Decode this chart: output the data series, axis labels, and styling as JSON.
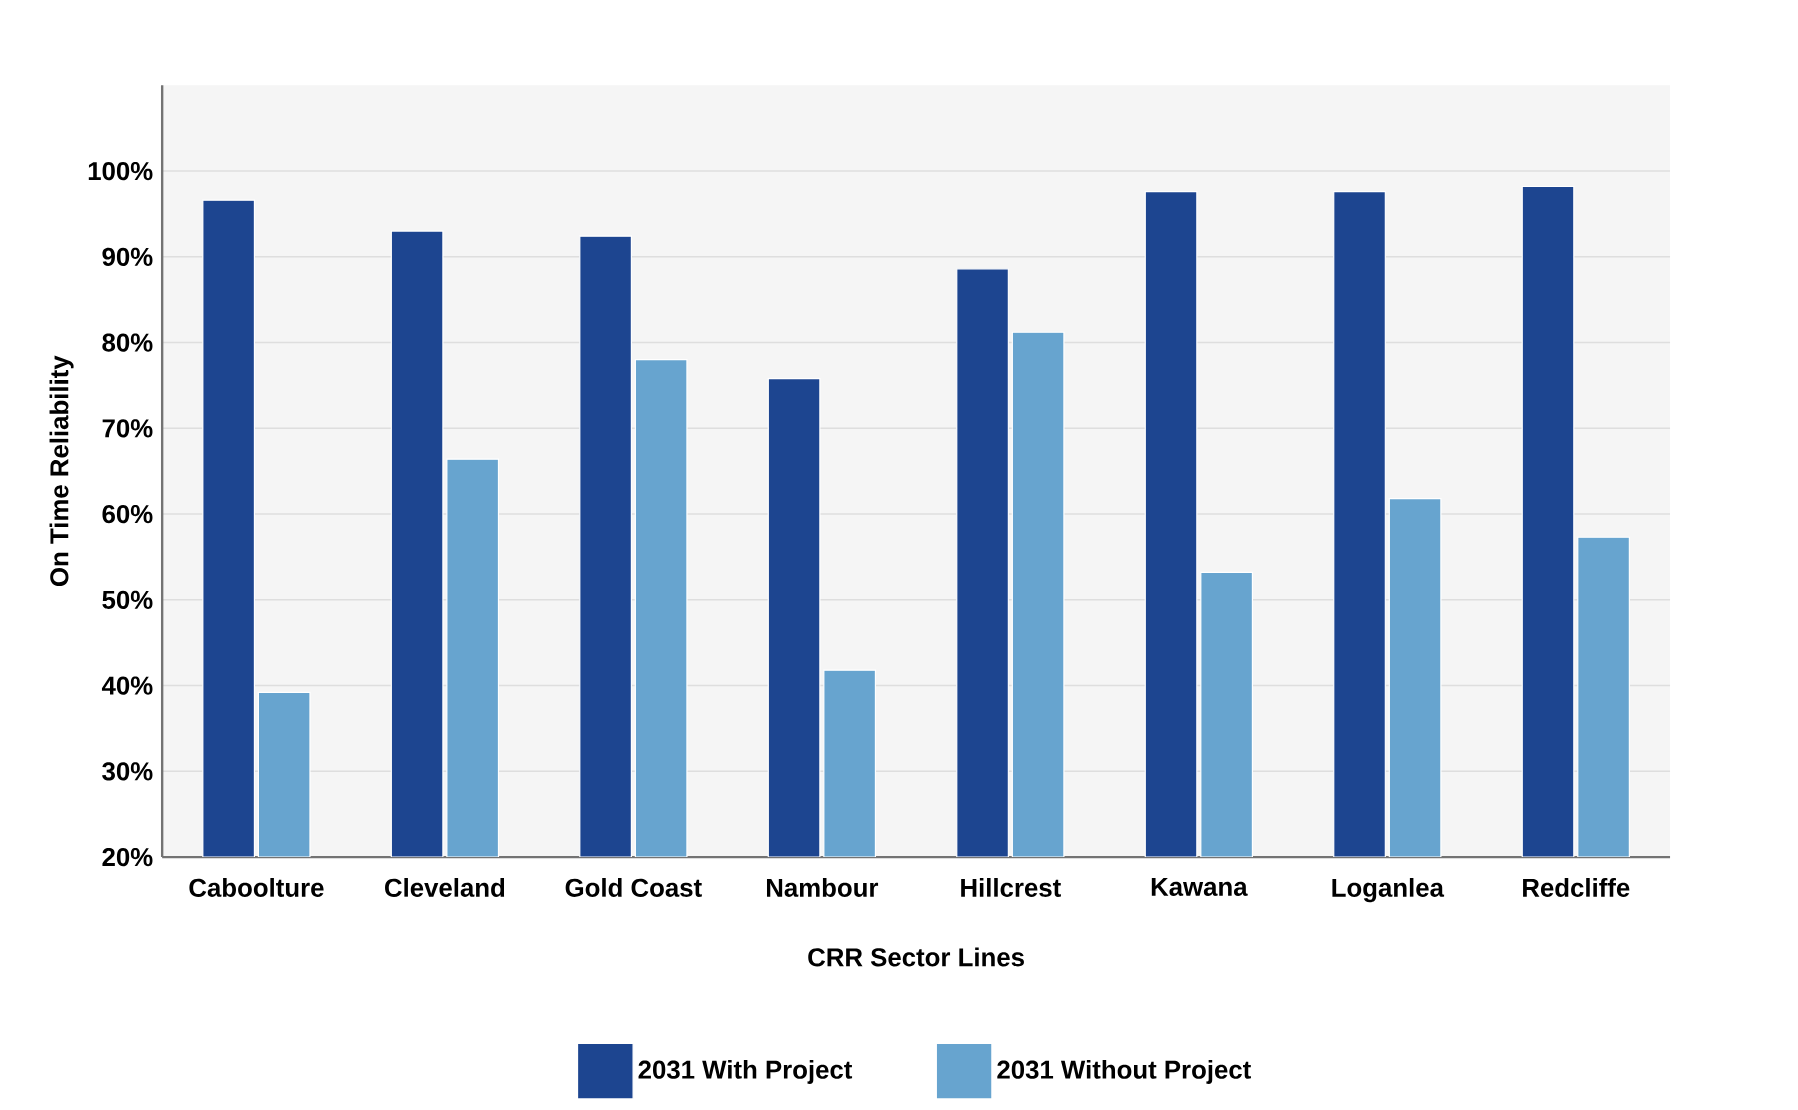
{
  "chart_data": {
    "type": "bar",
    "xlabel": "CRR Sector Lines",
    "ylabel": "On Time Reliability",
    "categories": [
      "Caboolture",
      "Cleveland",
      "Gold Coast",
      "Nambour",
      "Hillcrest",
      "Kawana",
      "Loganlea",
      "Redcliffe"
    ],
    "series": [
      {
        "name": "2031 With Project",
        "color": "#1d4590",
        "values": [
          96.6,
          93,
          92.4,
          75.8,
          88.6,
          97.6,
          97.6,
          98.2
        ]
      },
      {
        "name": "2031 Without Project",
        "color": "#67a4cf",
        "values": [
          39.2,
          66.4,
          78,
          41.8,
          81.2,
          53.2,
          61.8,
          57.3
        ]
      }
    ],
    "ylim": [
      20,
      110
    ],
    "yticks": [
      {
        "value": 20,
        "label": "20%"
      },
      {
        "value": 30,
        "label": "30%"
      },
      {
        "value": 40,
        "label": "40%"
      },
      {
        "value": 50,
        "label": "50%"
      },
      {
        "value": 60,
        "label": "60%"
      },
      {
        "value": 70,
        "label": "70%"
      },
      {
        "value": 80,
        "label": "80%"
      },
      {
        "value": 90,
        "label": "90%"
      },
      {
        "value": 100,
        "label": "100%"
      }
    ],
    "grid": "y",
    "legend": "bottom"
  }
}
